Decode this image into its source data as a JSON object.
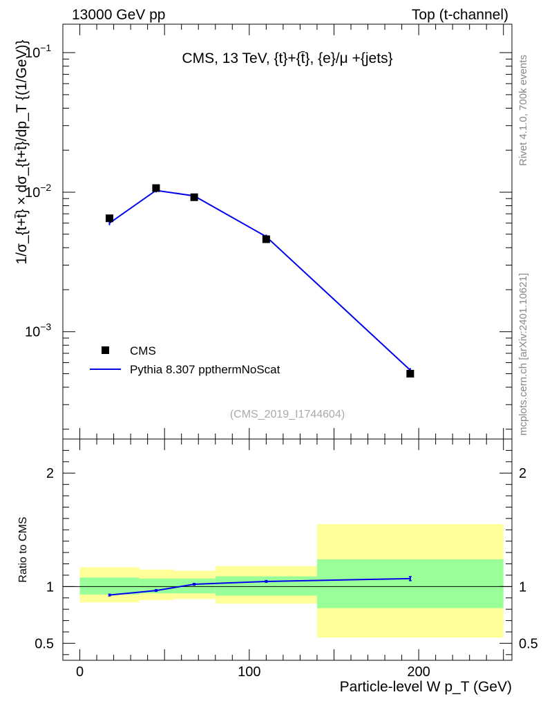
{
  "header": {
    "left_label": "13000 GeV pp",
    "right_label": "Top (t-channel)"
  },
  "side": {
    "rivet_label": "Rivet 4.1.0,  700k events",
    "source_label": "mcplots.cern.ch [arXiv:2401.10621]"
  },
  "analysis_id": "(CMS_2019_I1744604)",
  "colors": {
    "mc_line": "#0000ee",
    "data_marker": "#000000",
    "band_outer": "#ffff99",
    "band_inner": "#99ff99",
    "side_text": "#888888"
  },
  "chart_data": [
    {
      "type": "line",
      "panel": "main",
      "title": "CMS, 13 TeV, {t}+{t̄}, {e}/μ +{jets}",
      "ylabel": "1/σ_{t+t̄} × dσ_{t+t̄}/dp_T  {(1/GeV)}",
      "yscale": "log",
      "ylim": [
        0.00017,
        0.16
      ],
      "xlim": [
        -10,
        255
      ],
      "y_ticks": [
        {
          "base": "10",
          "exp": "−3",
          "value": 0.001
        },
        {
          "base": "10",
          "exp": "−2",
          "value": 0.01
        },
        {
          "base": "10",
          "exp": "−1",
          "value": 0.1
        }
      ],
      "legend": {
        "position": "bottom-left",
        "entries": [
          "CMS",
          "Pythia 8.307 ppthermNoScat"
        ]
      },
      "series": [
        {
          "name": "CMS",
          "style": "markers",
          "x": [
            17.5,
            45,
            67.5,
            110,
            195
          ],
          "y": [
            0.0065,
            0.0107,
            0.0092,
            0.0046,
            0.0005
          ],
          "bin_edges": [
            0,
            35,
            55,
            80,
            140,
            250
          ]
        },
        {
          "name": "Pythia 8.307 ppthermNoScat",
          "style": "line",
          "x": [
            17.5,
            45,
            67.5,
            110,
            195
          ],
          "y": [
            0.006,
            0.0103,
            0.0094,
            0.0048,
            0.00053
          ]
        }
      ]
    },
    {
      "type": "line",
      "panel": "ratio",
      "ylabel": "Ratio to CMS",
      "xlabel": "Particle-level W p_T (GeV)",
      "xlim": [
        -10,
        255
      ],
      "ylim": [
        0.35,
        2.3
      ],
      "x_ticks": [
        "0",
        "100",
        "200"
      ],
      "x_tick_values": [
        0,
        100,
        200
      ],
      "y_ticks": [
        "0.5",
        "1",
        "2"
      ],
      "y_tick_values": [
        0.5,
        1,
        2
      ],
      "bands": [
        {
          "x0": 0,
          "x1": 35,
          "outer": [
            0.86,
            1.17
          ],
          "inner": [
            0.93,
            1.08
          ]
        },
        {
          "x0": 35,
          "x1": 55,
          "outer": [
            0.88,
            1.15
          ],
          "inner": [
            0.94,
            1.07
          ]
        },
        {
          "x0": 55,
          "x1": 80,
          "outer": [
            0.89,
            1.14
          ],
          "inner": [
            0.94,
            1.07
          ]
        },
        {
          "x0": 80,
          "x1": 140,
          "outer": [
            0.85,
            1.18
          ],
          "inner": [
            0.92,
            1.09
          ]
        },
        {
          "x0": 140,
          "x1": 250,
          "outer": [
            0.55,
            1.55
          ],
          "inner": [
            0.81,
            1.24
          ]
        }
      ],
      "series": [
        {
          "name": "Pythia 8.307 ppthermNoScat / CMS",
          "x": [
            17.5,
            45,
            67.5,
            110,
            195
          ],
          "y": [
            0.925,
            0.965,
            1.02,
            1.045,
            1.07
          ],
          "err": [
            0.008,
            0.008,
            0.008,
            0.008,
            0.018
          ]
        }
      ]
    }
  ]
}
